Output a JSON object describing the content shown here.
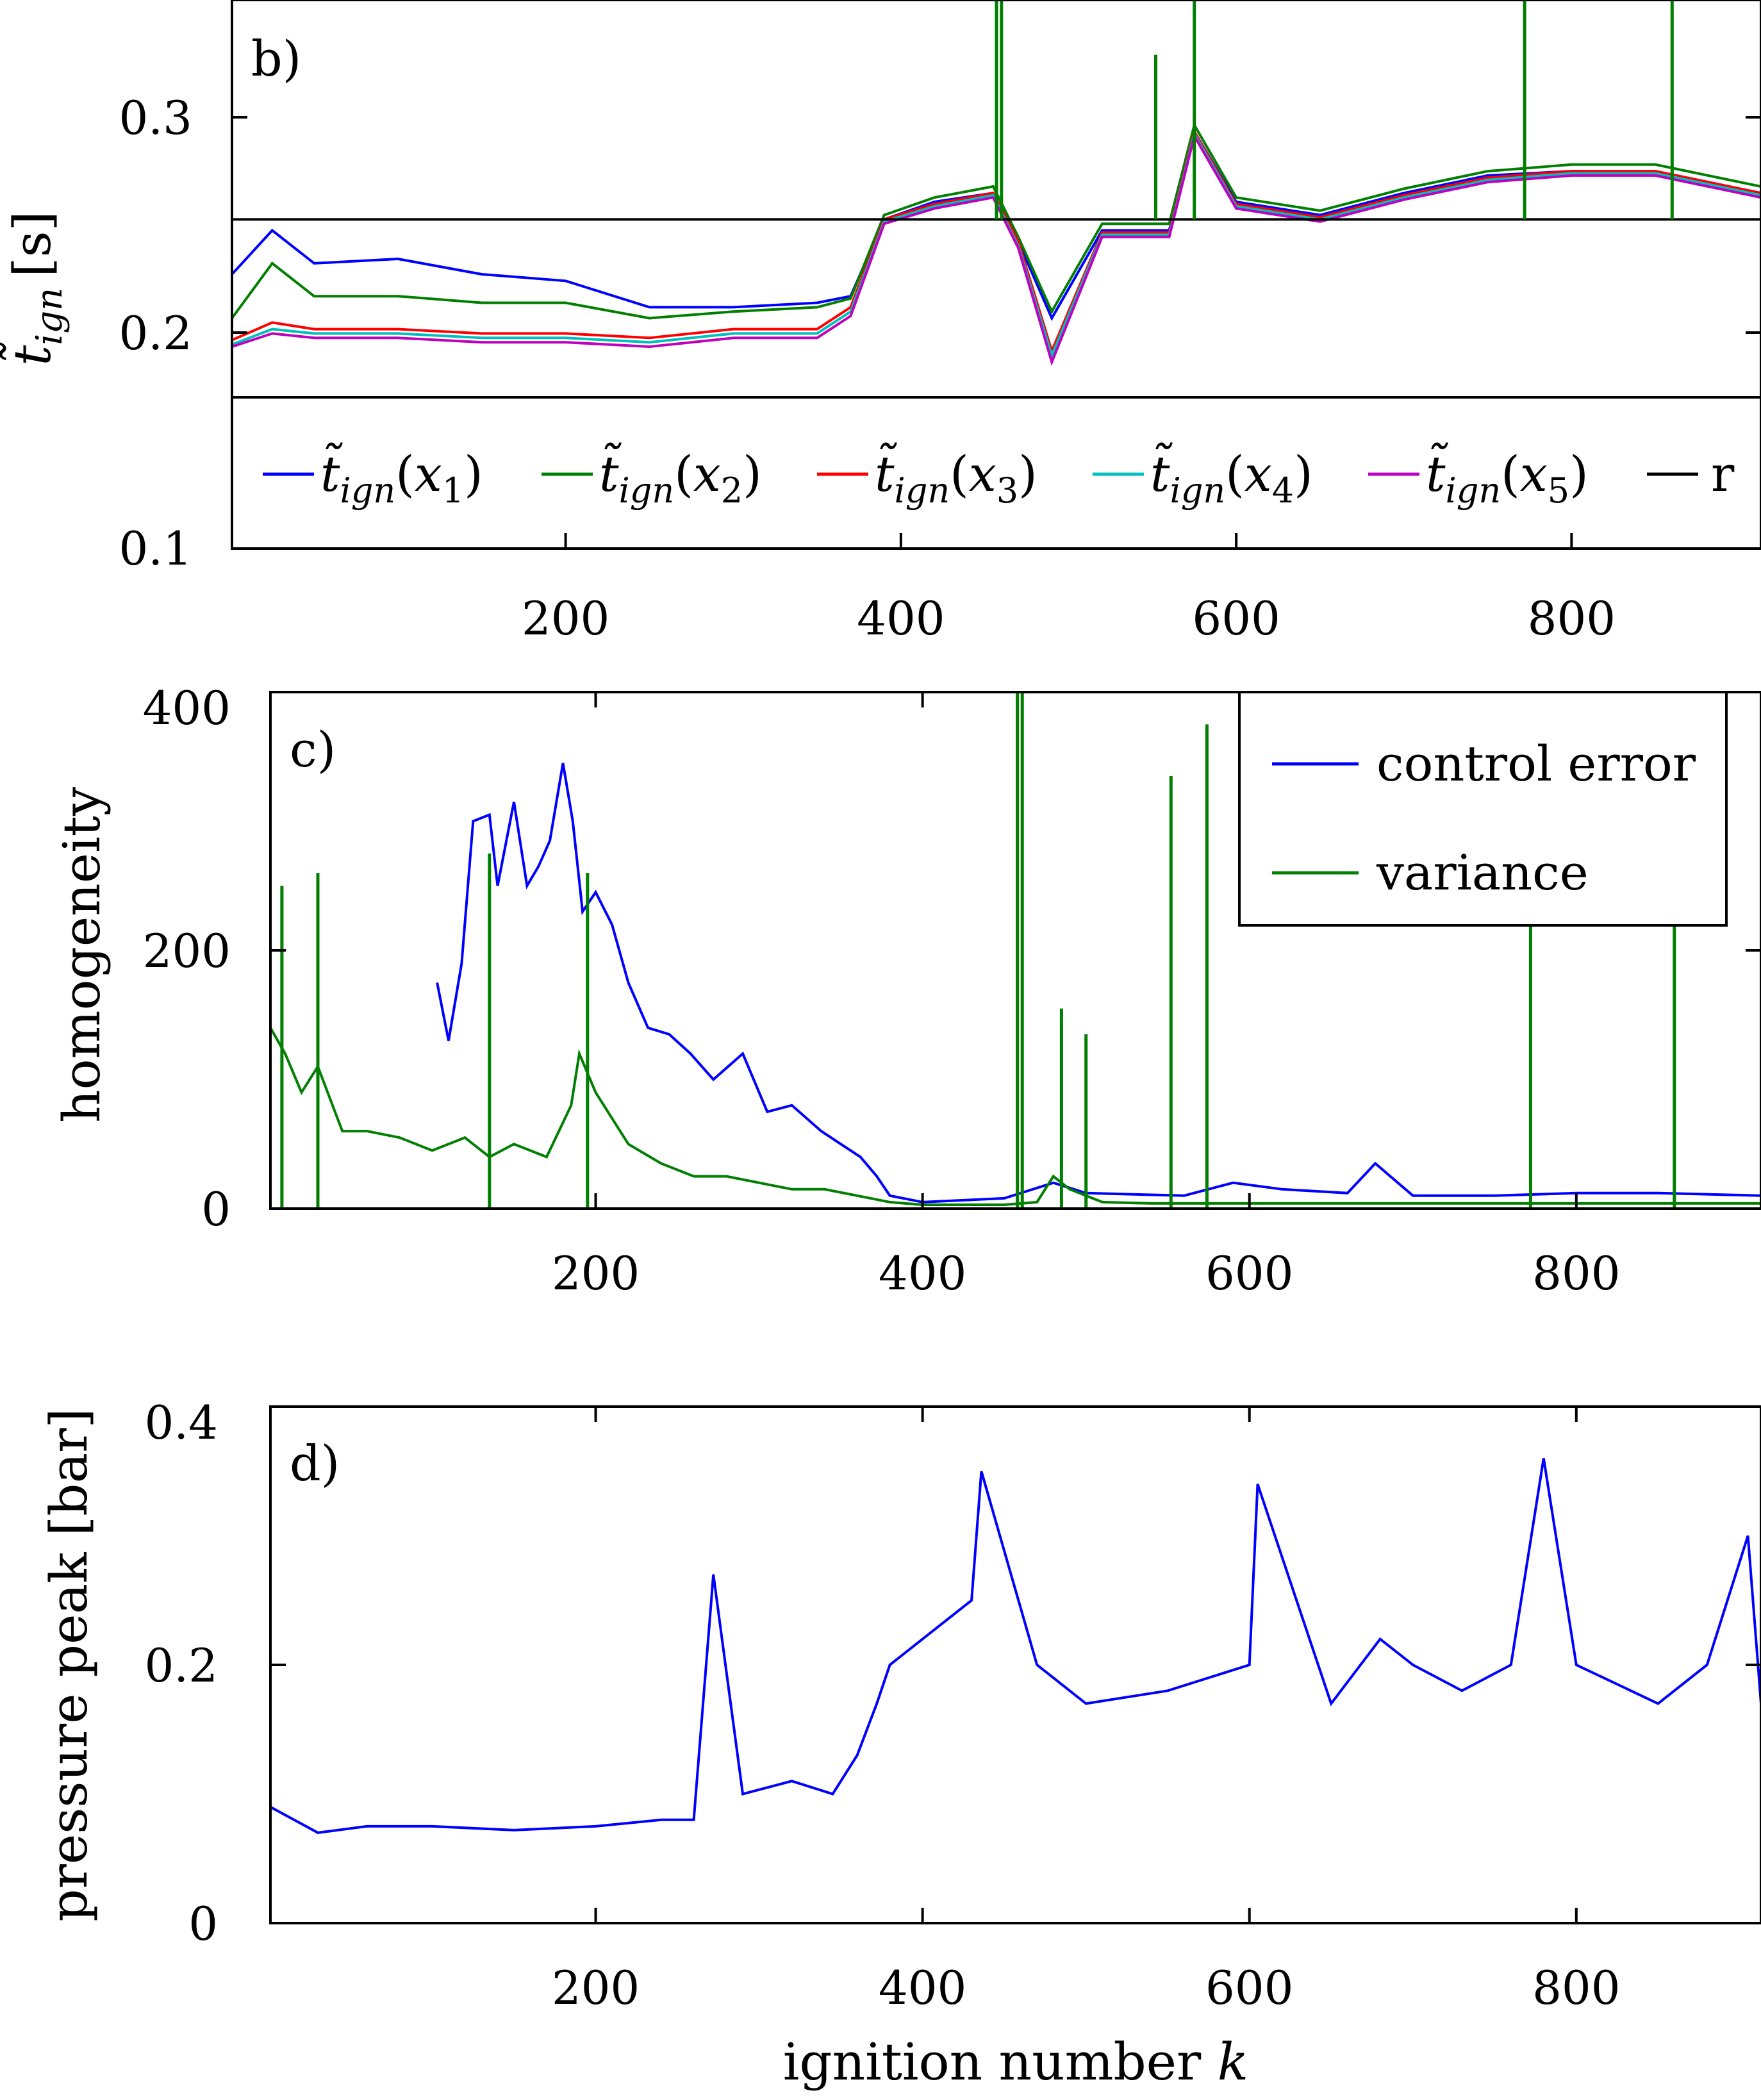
{
  "chart_data": [
    {
      "id": "b",
      "type": "line",
      "panel_label": "b)",
      "xlabel": "",
      "ylabel": "t̃ign [s]",
      "ylabel_parts": {
        "symbol": "t̃",
        "sub": "ign",
        "unit": "[s]"
      },
      "xlim": [
        1,
        913
      ],
      "ylim": [
        0.1,
        0.35
      ],
      "xticks": [
        200,
        400,
        600,
        800
      ],
      "yticks": [
        0.1,
        0.2,
        0.3
      ],
      "ytick_labels": [
        "0.1",
        "0.2",
        "0.3"
      ],
      "grid": false,
      "legend_position": "bottom, full-width inside axes",
      "legend": [
        {
          "label": "t̃ign(x1)",
          "symbol": "t̃",
          "sub": "ign",
          "arg": "x",
          "arg_sub": "1",
          "color": "#0000ff"
        },
        {
          "label": "t̃ign(x2)",
          "symbol": "t̃",
          "sub": "ign",
          "arg": "x",
          "arg_sub": "2",
          "color": "#007f00"
        },
        {
          "label": "t̃ign(x3)",
          "symbol": "t̃",
          "sub": "ign",
          "arg": "x",
          "arg_sub": "3",
          "color": "#ff0000"
        },
        {
          "label": "t̃ign(x4)",
          "symbol": "t̃",
          "sub": "ign",
          "arg": "x",
          "arg_sub": "4",
          "color": "#00bfbf"
        },
        {
          "label": "t̃ign(x5)",
          "symbol": "t̃",
          "sub": "ign",
          "arg": "x",
          "arg_sub": "5",
          "color": "#bf00bf"
        },
        {
          "label": "r",
          "color": "#000000"
        }
      ],
      "series": [
        {
          "color": "#0000ff",
          "x": [
            1,
            25,
            50,
            100,
            150,
            200,
            250,
            300,
            350,
            370,
            390,
            420,
            455,
            470,
            490,
            520,
            560,
            575,
            600,
            650,
            700,
            750,
            800,
            850,
            913
          ],
          "y": [
            0.225,
            0.245,
            0.23,
            0.232,
            0.225,
            0.222,
            0.21,
            0.21,
            0.212,
            0.215,
            0.25,
            0.258,
            0.262,
            0.24,
            0.205,
            0.245,
            0.245,
            0.29,
            0.258,
            0.252,
            0.262,
            0.27,
            0.272,
            0.272,
            0.262
          ]
        },
        {
          "color": "#007f00",
          "x": [
            1,
            25,
            50,
            100,
            150,
            200,
            250,
            300,
            350,
            370,
            390,
            420,
            455,
            470,
            490,
            520,
            560,
            575,
            600,
            650,
            700,
            750,
            800,
            850,
            913
          ],
          "y": [
            0.205,
            0.23,
            0.215,
            0.215,
            0.212,
            0.212,
            0.205,
            0.208,
            0.21,
            0.214,
            0.252,
            0.26,
            0.265,
            0.242,
            0.208,
            0.248,
            0.248,
            0.293,
            0.26,
            0.254,
            0.264,
            0.272,
            0.275,
            0.275,
            0.265
          ]
        },
        {
          "color": "#ff0000",
          "x": [
            1,
            25,
            50,
            100,
            150,
            200,
            250,
            300,
            350,
            370,
            390,
            420,
            455,
            470,
            490,
            520,
            560,
            575,
            600,
            650,
            700,
            750,
            800,
            850,
            913
          ],
          "y": [
            0.195,
            0.203,
            0.2,
            0.2,
            0.198,
            0.198,
            0.196,
            0.2,
            0.2,
            0.21,
            0.25,
            0.257,
            0.262,
            0.24,
            0.19,
            0.244,
            0.244,
            0.29,
            0.257,
            0.251,
            0.261,
            0.269,
            0.272,
            0.272,
            0.262
          ]
        },
        {
          "color": "#00bfbf",
          "x": [
            1,
            25,
            50,
            100,
            150,
            200,
            250,
            300,
            350,
            370,
            390,
            420,
            455,
            470,
            490,
            520,
            560,
            575,
            600,
            650,
            700,
            750,
            800,
            850,
            913
          ],
          "y": [
            0.193,
            0.2,
            0.198,
            0.198,
            0.196,
            0.196,
            0.194,
            0.198,
            0.198,
            0.208,
            0.249,
            0.256,
            0.261,
            0.238,
            0.188,
            0.243,
            0.243,
            0.289,
            0.256,
            0.25,
            0.26,
            0.268,
            0.271,
            0.271,
            0.261
          ]
        },
        {
          "color": "#bf00bf",
          "x": [
            1,
            25,
            50,
            100,
            150,
            200,
            250,
            300,
            350,
            370,
            390,
            420,
            455,
            470,
            490,
            520,
            560,
            575,
            600,
            650,
            700,
            750,
            800,
            850,
            913
          ],
          "y": [
            0.192,
            0.198,
            0.196,
            0.196,
            0.194,
            0.194,
            0.192,
            0.196,
            0.196,
            0.206,
            0.248,
            0.255,
            0.26,
            0.237,
            0.185,
            0.242,
            0.242,
            0.288,
            0.255,
            0.249,
            0.259,
            0.267,
            0.27,
            0.27,
            0.26
          ]
        },
        {
          "color": "#000000",
          "x": [
            1,
            913
          ],
          "y": [
            0.25,
            0.25
          ]
        }
      ],
      "spikes": [
        {
          "color": "#007f00",
          "x": 457,
          "y": 0.35
        },
        {
          "color": "#007f00",
          "x": 460,
          "y": 0.35
        },
        {
          "color": "#007f00",
          "x": 552,
          "y": 0.325
        },
        {
          "color": "#007f00",
          "x": 575,
          "y": 0.35
        },
        {
          "color": "#007f00",
          "x": 772,
          "y": 0.35
        },
        {
          "color": "#007f00",
          "x": 860,
          "y": 0.35
        }
      ]
    },
    {
      "id": "c",
      "type": "line",
      "panel_label": "c)",
      "xlabel": "",
      "ylabel": "homogeneity",
      "xlim": [
        1,
        913
      ],
      "ylim": [
        0,
        400
      ],
      "xticks": [
        200,
        400,
        600,
        800
      ],
      "yticks": [
        0,
        200,
        400
      ],
      "ytick_labels": [
        "0",
        "200",
        "400"
      ],
      "grid": false,
      "legend_position": "top-right",
      "legend": [
        {
          "label": "control error",
          "color": "#0000ff"
        },
        {
          "label": "variance",
          "color": "#007f00"
        }
      ],
      "series": [
        {
          "color": "#0000ff",
          "x": [
            103,
            110,
            118,
            125,
            135,
            140,
            150,
            158,
            165,
            172,
            180,
            186,
            192,
            200,
            210,
            220,
            232,
            245,
            258,
            272,
            290,
            305,
            320,
            338,
            350,
            362,
            372,
            380,
            400,
            450,
            480,
            500,
            560,
            590,
            620,
            660,
            677,
            700,
            750,
            800,
            850,
            913
          ],
          "y": [
            175,
            130,
            190,
            300,
            305,
            250,
            315,
            250,
            265,
            285,
            345,
            300,
            230,
            245,
            220,
            175,
            140,
            135,
            120,
            100,
            120,
            75,
            80,
            60,
            50,
            40,
            25,
            10,
            5,
            8,
            20,
            12,
            10,
            20,
            15,
            12,
            35,
            10,
            10,
            12,
            12,
            10
          ]
        },
        {
          "color": "#007f00",
          "x": [
            1,
            10,
            20,
            30,
            45,
            60,
            80,
            100,
            120,
            135,
            150,
            170,
            185,
            190,
            200,
            220,
            240,
            260,
            280,
            300,
            320,
            340,
            360,
            380,
            400,
            450,
            470,
            480,
            490,
            510,
            540,
            560,
            600,
            650,
            700,
            750,
            800,
            850,
            913
          ],
          "y": [
            140,
            120,
            90,
            110,
            60,
            60,
            55,
            45,
            55,
            40,
            50,
            40,
            80,
            120,
            90,
            50,
            35,
            25,
            25,
            20,
            15,
            15,
            10,
            5,
            3,
            3,
            5,
            25,
            15,
            5,
            4,
            4,
            4,
            4,
            4,
            4,
            4,
            4,
            4
          ]
        }
      ],
      "spikes": [
        {
          "color": "#007f00",
          "x": 8,
          "y": 250
        },
        {
          "color": "#007f00",
          "x": 30,
          "y": 260
        },
        {
          "color": "#007f00",
          "x": 195,
          "y": 260
        },
        {
          "color": "#007f00",
          "x": 135,
          "y": 275
        },
        {
          "color": "#007f00",
          "x": 458,
          "y": 400
        },
        {
          "color": "#007f00",
          "x": 461,
          "y": 400
        },
        {
          "color": "#007f00",
          "x": 485,
          "y": 155
        },
        {
          "color": "#007f00",
          "x": 500,
          "y": 135
        },
        {
          "color": "#007f00",
          "x": 552,
          "y": 335
        },
        {
          "color": "#007f00",
          "x": 574,
          "y": 375
        },
        {
          "color": "#007f00",
          "x": 772,
          "y": 400
        },
        {
          "color": "#007f00",
          "x": 860,
          "y": 400
        }
      ]
    },
    {
      "id": "d",
      "type": "line",
      "panel_label": "d)",
      "xlabel": "ignition number k",
      "xlabel_parts": {
        "text": "ignition number",
        "symbol": "k"
      },
      "ylabel": "pressure peak [bar]",
      "xlim": [
        1,
        913
      ],
      "ylim": [
        0,
        0.4
      ],
      "xticks": [
        200,
        400,
        600,
        800
      ],
      "yticks": [
        0,
        0.2,
        0.4
      ],
      "ytick_labels": [
        "0",
        "0.2",
        "0.4"
      ],
      "grid": false,
      "series": [
        {
          "color": "#0000ff",
          "x": [
            1,
            30,
            60,
            100,
            150,
            200,
            240,
            260,
            272,
            290,
            320,
            345,
            360,
            372,
            380,
            400,
            430,
            436,
            470,
            500,
            550,
            600,
            605,
            650,
            680,
            700,
            730,
            760,
            780,
            800,
            850,
            880,
            905,
            913
          ],
          "y": [
            0.09,
            0.07,
            0.075,
            0.075,
            0.072,
            0.075,
            0.08,
            0.08,
            0.27,
            0.1,
            0.11,
            0.1,
            0.13,
            0.17,
            0.2,
            0.22,
            0.25,
            0.35,
            0.2,
            0.17,
            0.18,
            0.2,
            0.34,
            0.17,
            0.22,
            0.2,
            0.18,
            0.2,
            0.36,
            0.2,
            0.17,
            0.2,
            0.3,
            0.17
          ]
        }
      ]
    }
  ]
}
